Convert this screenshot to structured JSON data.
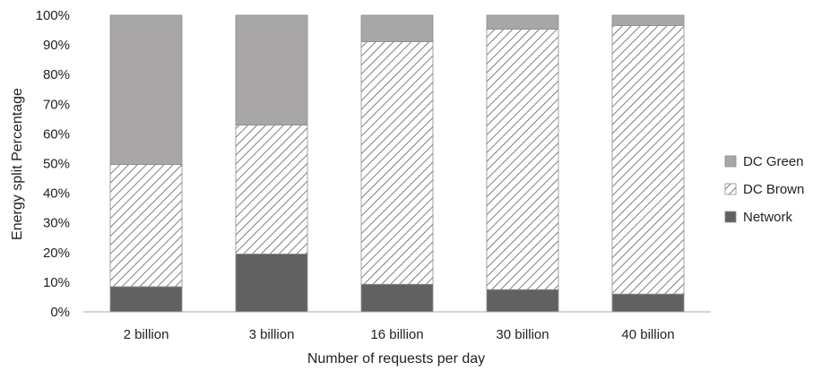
{
  "chart_data": {
    "type": "bar",
    "stacked": true,
    "normalized": true,
    "title": "",
    "xlabel": "Number of requests per day",
    "ylabel": "Energy split Percentage",
    "categories": [
      "2 billion",
      "3 billion",
      "16 billion",
      "30 billion",
      "40 billion"
    ],
    "ylim": [
      0,
      100
    ],
    "yticks": [
      "0%",
      "10%",
      "20%",
      "30%",
      "40%",
      "50%",
      "60%",
      "70%",
      "80%",
      "90%",
      "100%"
    ],
    "grid": false,
    "legend_position": "right",
    "series": [
      {
        "name": "Network",
        "values": [
          8.5,
          19.5,
          9.3,
          7.5,
          6.0
        ],
        "color": "#616161",
        "fill": "solid"
      },
      {
        "name": "DC Brown",
        "values": [
          41.2,
          43.5,
          81.8,
          87.8,
          90.5
        ],
        "color": "#5e5e5e",
        "fill": "diagonal-hatch"
      },
      {
        "name": "DC Green",
        "values": [
          50.3,
          37.0,
          8.9,
          4.7,
          3.5
        ],
        "color": "#a8a6a6",
        "fill": "solid"
      }
    ],
    "legend_order": [
      "DC Green",
      "DC Brown",
      "Network"
    ]
  }
}
